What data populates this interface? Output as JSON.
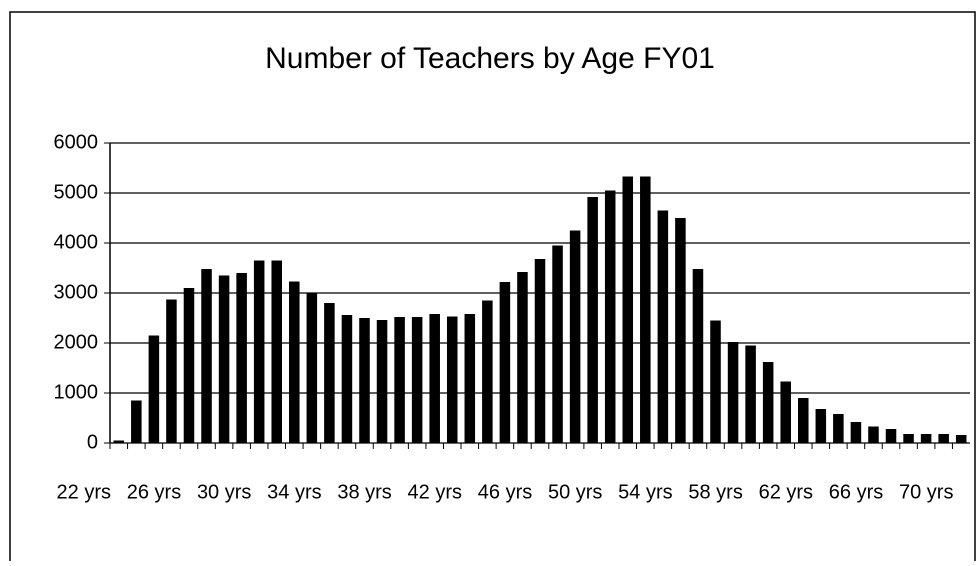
{
  "chart_data": {
    "type": "bar",
    "title": "Number of Teachers by Age FY01",
    "categories": [
      "22 yrs",
      null,
      null,
      null,
      "26 yrs",
      null,
      null,
      null,
      "30 yrs",
      null,
      null,
      null,
      "34 yrs",
      null,
      null,
      null,
      "38 yrs",
      null,
      null,
      null,
      "42 yrs",
      null,
      null,
      null,
      "46 yrs",
      null,
      null,
      null,
      "50 yrs",
      null,
      null,
      null,
      "54 yrs",
      null,
      null,
      null,
      "58 yrs",
      null,
      null,
      null,
      "62 yrs",
      null,
      null,
      null,
      "66 yrs",
      null,
      null,
      null,
      "70 yrs"
    ],
    "values": [
      50,
      850,
      2150,
      2870,
      3100,
      3480,
      3350,
      3400,
      3650,
      3650,
      3230,
      3000,
      2800,
      2560,
      2500,
      2460,
      2520,
      2520,
      2580,
      2530,
      2580,
      2850,
      3220,
      3420,
      3680,
      3950,
      4250,
      4920,
      5050,
      5330,
      5330,
      4650,
      4500,
      3480,
      2450,
      2020,
      1950,
      1620,
      1230,
      900,
      680,
      580,
      420,
      330,
      280,
      180,
      180,
      180,
      160
    ],
    "color": "#000000",
    "ylim": [
      0,
      6000
    ],
    "yticks": [
      0,
      1000,
      2000,
      3000,
      4000,
      5000,
      6000
    ],
    "grid": true
  }
}
